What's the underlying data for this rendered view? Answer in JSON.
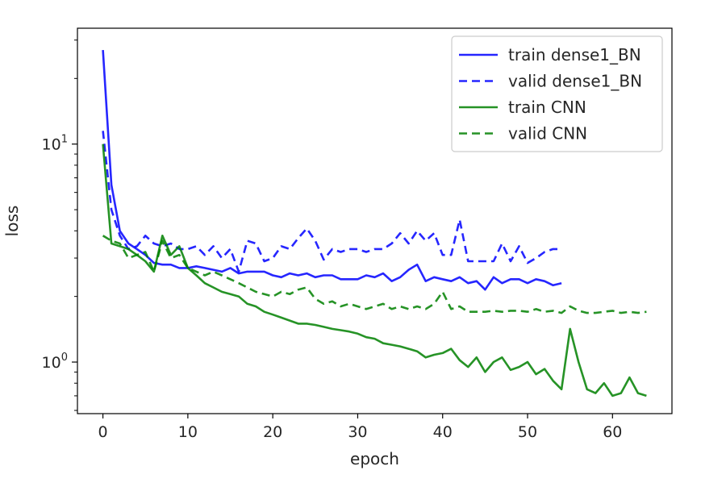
{
  "chart_data": {
    "type": "line",
    "xlabel": "epoch",
    "ylabel": "loss",
    "x_scale": "linear",
    "y_scale": "log",
    "xlim": [
      -3,
      67
    ],
    "ylim": [
      0.58,
      34
    ],
    "x_ticks": [
      {
        "value": 0,
        "label": "0"
      },
      {
        "value": 10,
        "label": "10"
      },
      {
        "value": 20,
        "label": "20"
      },
      {
        "value": 30,
        "label": "30"
      },
      {
        "value": 40,
        "label": "40"
      },
      {
        "value": 50,
        "label": "50"
      },
      {
        "value": 60,
        "label": "60"
      }
    ],
    "y_major_ticks": [
      {
        "value": 1,
        "base": "10",
        "exp": "0"
      },
      {
        "value": 10,
        "base": "10",
        "exp": "1"
      }
    ],
    "y_minor_ticks": [
      0.6,
      0.7,
      0.8,
      0.9,
      2,
      3,
      4,
      5,
      6,
      7,
      8,
      9,
      20,
      30
    ],
    "grid": false,
    "legend_position": "top-right",
    "series": [
      {
        "name": "train dense1_BN",
        "color": "#0000ff",
        "dash": "solid",
        "x": [
          0,
          1,
          2,
          3,
          4,
          5,
          6,
          7,
          8,
          9,
          10,
          11,
          12,
          13,
          14,
          15,
          16,
          17,
          18,
          19,
          20,
          21,
          22,
          23,
          24,
          25,
          26,
          27,
          28,
          29,
          30,
          31,
          32,
          33,
          34,
          35,
          36,
          37,
          38,
          39,
          40,
          41,
          42,
          43,
          44,
          45,
          46,
          47,
          48,
          49,
          50,
          51,
          52,
          53,
          54
        ],
        "y": [
          27,
          6.5,
          4.0,
          3.5,
          3.3,
          3.1,
          2.85,
          2.8,
          2.8,
          2.7,
          2.7,
          2.75,
          2.7,
          2.65,
          2.6,
          2.7,
          2.55,
          2.6,
          2.6,
          2.6,
          2.5,
          2.45,
          2.55,
          2.5,
          2.55,
          2.45,
          2.5,
          2.5,
          2.4,
          2.4,
          2.4,
          2.5,
          2.45,
          2.55,
          2.35,
          2.45,
          2.65,
          2.8,
          2.35,
          2.45,
          2.4,
          2.35,
          2.45,
          2.3,
          2.35,
          2.15,
          2.45,
          2.3,
          2.4,
          2.4,
          2.3,
          2.4,
          2.35,
          2.25,
          2.3
        ]
      },
      {
        "name": "valid dense1_BN",
        "color": "#0000ff",
        "dash": "dashed",
        "x": [
          0,
          1,
          2,
          3,
          4,
          5,
          6,
          7,
          8,
          9,
          10,
          11,
          12,
          13,
          14,
          15,
          16,
          17,
          18,
          19,
          20,
          21,
          22,
          23,
          24,
          25,
          26,
          27,
          28,
          29,
          30,
          31,
          32,
          33,
          34,
          35,
          36,
          37,
          38,
          39,
          40,
          41,
          42,
          43,
          44,
          45,
          46,
          47,
          48,
          49,
          50,
          51,
          52,
          53,
          54
        ],
        "y": [
          11.5,
          5.0,
          3.8,
          3.3,
          3.4,
          3.8,
          3.5,
          3.4,
          3.5,
          3.3,
          3.3,
          3.4,
          3.1,
          3.4,
          3.0,
          3.3,
          2.6,
          3.6,
          3.5,
          2.9,
          3.0,
          3.4,
          3.3,
          3.7,
          4.1,
          3.6,
          2.95,
          3.3,
          3.2,
          3.3,
          3.3,
          3.2,
          3.3,
          3.3,
          3.5,
          3.9,
          3.5,
          4.0,
          3.6,
          3.9,
          3.1,
          3.1,
          4.5,
          2.9,
          2.9,
          2.9,
          2.9,
          3.5,
          2.9,
          3.4,
          2.85,
          3.0,
          3.2,
          3.3,
          3.3
        ]
      },
      {
        "name": "train CNN",
        "color": "#008000",
        "dash": "solid",
        "x": [
          0,
          1,
          2,
          3,
          4,
          5,
          6,
          7,
          8,
          9,
          10,
          11,
          12,
          13,
          14,
          15,
          16,
          17,
          18,
          19,
          20,
          21,
          22,
          23,
          24,
          25,
          26,
          27,
          28,
          29,
          30,
          31,
          32,
          33,
          34,
          35,
          36,
          37,
          38,
          39,
          40,
          41,
          42,
          43,
          44,
          45,
          46,
          47,
          48,
          49,
          50,
          51,
          52,
          53,
          54,
          55,
          56,
          57,
          58,
          59,
          60,
          61,
          62,
          63,
          64
        ],
        "y": [
          10,
          3.5,
          3.4,
          3.3,
          3.1,
          2.9,
          2.6,
          3.8,
          3.1,
          3.4,
          2.7,
          2.5,
          2.3,
          2.2,
          2.1,
          2.05,
          2.0,
          1.85,
          1.8,
          1.7,
          1.65,
          1.6,
          1.55,
          1.5,
          1.5,
          1.48,
          1.45,
          1.42,
          1.4,
          1.38,
          1.35,
          1.3,
          1.28,
          1.22,
          1.2,
          1.18,
          1.15,
          1.12,
          1.05,
          1.08,
          1.1,
          1.15,
          1.02,
          0.95,
          1.05,
          0.9,
          1.0,
          1.05,
          0.92,
          0.95,
          1.0,
          0.88,
          0.93,
          0.82,
          0.75,
          1.42,
          1.0,
          0.75,
          0.72,
          0.8,
          0.7,
          0.72,
          0.85,
          0.72,
          0.7
        ]
      },
      {
        "name": "valid CNN",
        "color": "#008000",
        "dash": "dashed",
        "x": [
          0,
          1,
          2,
          3,
          4,
          5,
          6,
          7,
          8,
          9,
          10,
          11,
          12,
          13,
          14,
          15,
          16,
          17,
          18,
          19,
          20,
          21,
          22,
          23,
          24,
          25,
          26,
          27,
          28,
          29,
          30,
          31,
          32,
          33,
          34,
          35,
          36,
          37,
          38,
          39,
          40,
          41,
          42,
          43,
          44,
          45,
          46,
          47,
          48,
          49,
          50,
          51,
          52,
          53,
          54,
          55,
          56,
          57,
          58,
          59,
          60,
          61,
          62,
          63,
          64
        ],
        "y": [
          3.8,
          3.6,
          3.5,
          3.0,
          3.1,
          3.2,
          2.6,
          3.6,
          3.0,
          3.1,
          2.7,
          2.6,
          2.5,
          2.6,
          2.5,
          2.4,
          2.3,
          2.2,
          2.1,
          2.05,
          2.0,
          2.1,
          2.05,
          2.15,
          2.2,
          1.95,
          1.85,
          1.9,
          1.8,
          1.85,
          1.8,
          1.75,
          1.8,
          1.85,
          1.75,
          1.8,
          1.75,
          1.8,
          1.75,
          1.85,
          2.1,
          1.75,
          1.8,
          1.7,
          1.7,
          1.7,
          1.72,
          1.7,
          1.72,
          1.72,
          1.7,
          1.75,
          1.7,
          1.72,
          1.68,
          1.8,
          1.72,
          1.68,
          1.68,
          1.7,
          1.72,
          1.68,
          1.7,
          1.68,
          1.7
        ]
      }
    ]
  }
}
